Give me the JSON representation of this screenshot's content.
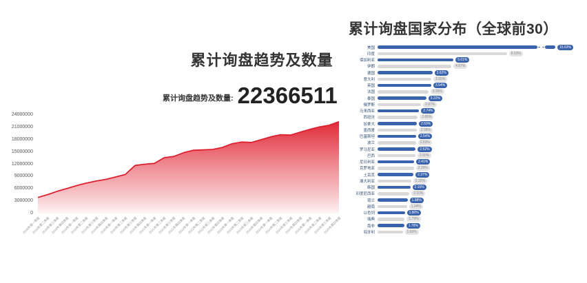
{
  "page": {
    "background": "#ffffff"
  },
  "left_chart": {
    "title": "累计询盘趋势及数量",
    "metric_label": "累计询盘趋势及数量:",
    "metric_value": "22366511"
  },
  "right_chart": {
    "title": "累计询盘国家分布（全球前30）"
  },
  "chart_data": [
    {
      "type": "area",
      "title": "累计询盘趋势及数量",
      "x": [
        "2018年第一季度",
        "2018年第二季度",
        "2018年第三季度",
        "2018年第四季度",
        "2019年第一季度",
        "2019年第二季度",
        "2019年第三季度",
        "2019年第四季度",
        "2020年第一季度",
        "2020年第二季度",
        "2020年第三季度",
        "2020年第四季度",
        "2021年第一季度",
        "2021年第二季度",
        "2021年第三季度",
        "2021年第四季度",
        "2022年第一季度",
        "2022年第二季度",
        "2022年第三季度",
        "2022年第四季度",
        "2023年第一季度",
        "2023年第二季度",
        "2023年第三季度",
        "2023年第四季度",
        "2024年第一季度",
        "2024年第二季度",
        "2024年第三季度",
        "2024年第四季度",
        "2025年第一季度",
        "2025年第二季度",
        "2025年第三季度",
        "2025年第四季度"
      ],
      "values": [
        3900000,
        4600000,
        5400000,
        6100000,
        6800000,
        7400000,
        7900000,
        8300000,
        8900000,
        9500000,
        11700000,
        12000000,
        12200000,
        13600000,
        13900000,
        14800000,
        15400000,
        15500000,
        15600000,
        16100000,
        17000000,
        17400000,
        17300000,
        18000000,
        18700000,
        19200000,
        19100000,
        19800000,
        20500000,
        21100000,
        21500000,
        22366511
      ],
      "ylim": [
        0,
        24000000
      ],
      "y_ticks": [
        0,
        3000000,
        6000000,
        9000000,
        12000000,
        15000000,
        18000000,
        21000000,
        24000000
      ],
      "line_color": "#df1f2d",
      "area_top_color": "#df1f2d",
      "area_bottom_color": "#fdecec",
      "grid": false,
      "legend": false
    },
    {
      "type": "bar",
      "orientation": "horizontal",
      "title": "累计询盘国家分布（全球前30）",
      "categories": [
        "美国",
        "印度",
        "保加利亚",
        "伊朗",
        "德国",
        "意大利",
        "英国",
        "法国",
        "泰国",
        "俄罗斯",
        "马来西亚",
        "西班牙",
        "加拿大",
        "墨西哥",
        "巴基斯坦",
        "波兰",
        "罗马尼亚",
        "巴西",
        "尼日利亚",
        "克罗地亚",
        "土耳其",
        "澳大利亚",
        "韩国",
        "印度尼西亚",
        "荷兰",
        "越南",
        "以色列",
        "瑞典",
        "南非",
        "匈牙利"
      ],
      "values": [
        15.63,
        8.53,
        5.01,
        4.87,
        3.62,
        3.55,
        3.54,
        3.35,
        3.22,
        2.87,
        2.74,
        2.65,
        2.59,
        2.58,
        2.54,
        2.53,
        2.52,
        2.5,
        2.41,
        2.39,
        2.37,
        2.22,
        2.16,
        2.1,
        1.98,
        1.94,
        1.8,
        1.79,
        1.76,
        1.66
      ],
      "value_labels": [
        "15.63%",
        "8.53%",
        "5.01%",
        "4.87%",
        "3.62%",
        "3.55%",
        "3.54%",
        "3.35%",
        "3.22%",
        "2.87%",
        "2.74%",
        "2.65%",
        "2.59%",
        "2.58%",
        "2.54%",
        "2.53%",
        "2.52%",
        "2.50%",
        "2.41%",
        "2.39%",
        "2.37%",
        "2.22%",
        "2.16%",
        "2.10%",
        "1.98%",
        "1.94%",
        "1.80%",
        "1.79%",
        "1.76%",
        "1.66%"
      ],
      "bar_color_odd_rows": "#3a63ad",
      "bar_color_even_rows": "#d9d9d9",
      "first_bar_truncated_with_axis_break": true,
      "legend": false
    }
  ]
}
